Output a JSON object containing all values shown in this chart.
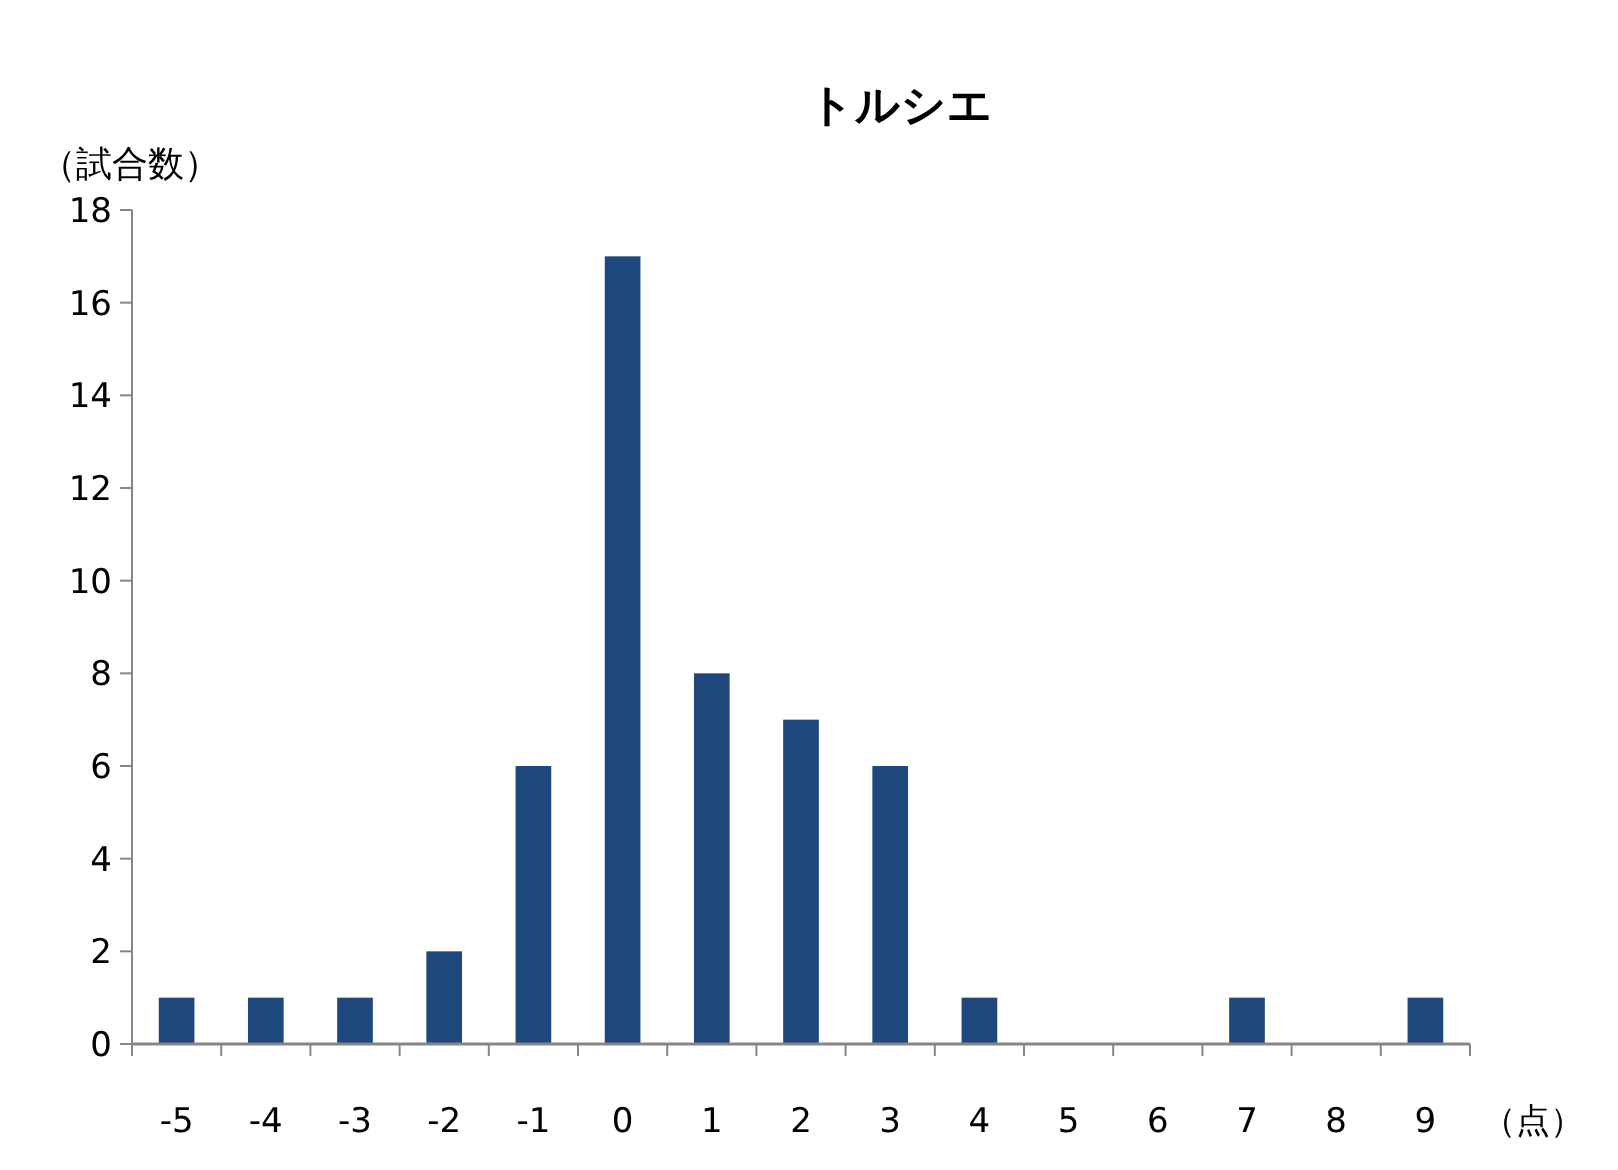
{
  "chart_data": {
    "type": "bar",
    "title": "トルシエ",
    "ylabel": "（試合数）",
    "xlabel": "（点）",
    "categories": [
      "-5",
      "-4",
      "-3",
      "-2",
      "-1",
      "0",
      "1",
      "2",
      "3",
      "4",
      "5",
      "6",
      "7",
      "8",
      "9"
    ],
    "values": [
      1,
      1,
      1,
      2,
      6,
      17,
      8,
      7,
      6,
      1,
      0,
      0,
      1,
      0,
      1
    ],
    "color": "#1f497d",
    "ylim": [
      0,
      18
    ],
    "yticks": [
      0,
      2,
      4,
      6,
      8,
      10,
      12,
      14,
      16,
      18
    ]
  }
}
